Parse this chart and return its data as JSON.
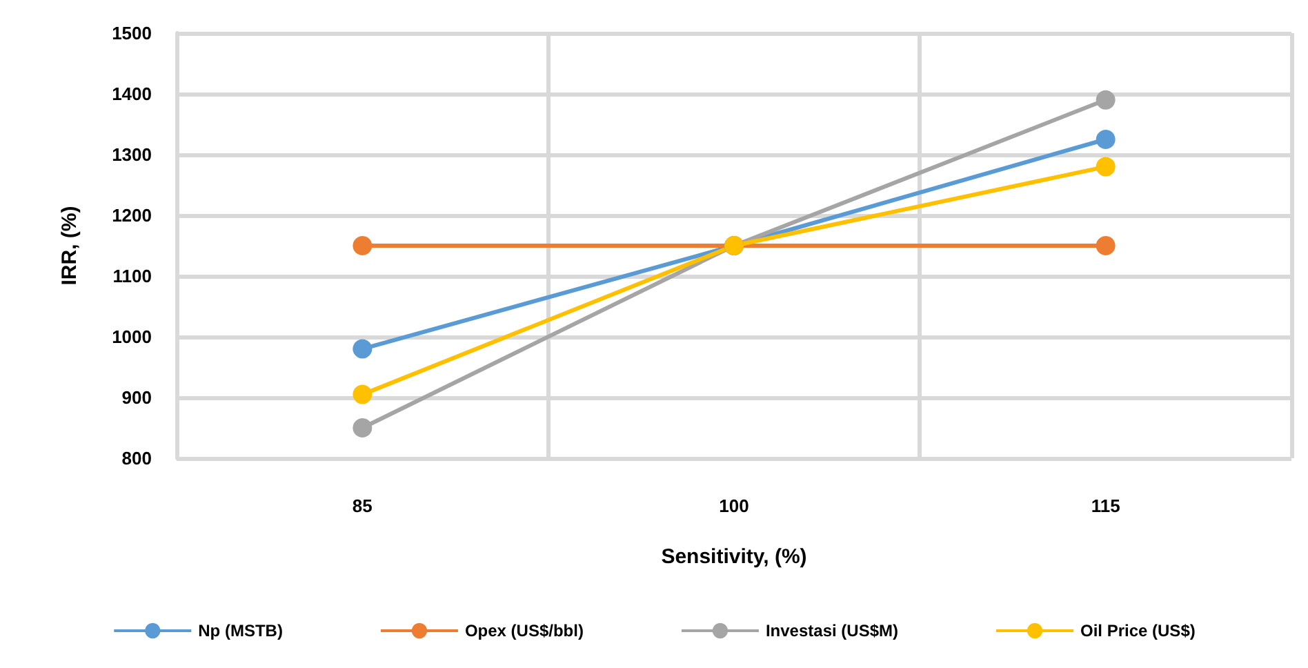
{
  "chart_data": {
    "type": "line",
    "xlabel": "Sensitivity, (%)",
    "ylabel": "IRR, (%)",
    "categories": [
      "85",
      "100",
      "115"
    ],
    "series": [
      {
        "name": "Np (MSTB)",
        "color": "#5b9bd5",
        "values": [
          980,
          1150,
          1325
        ]
      },
      {
        "name": "Opex (US$/bbl)",
        "color": "#ed7d31",
        "values": [
          1150,
          1150,
          1150
        ]
      },
      {
        "name": "Investasi (US$M)",
        "color": "#a5a5a5",
        "values": [
          850,
          1150,
          1390
        ]
      },
      {
        "name": "Oil Price (US$)",
        "color": "#ffc000",
        "values": [
          905,
          1150,
          1280
        ]
      }
    ],
    "ylim": [
      800,
      1500
    ],
    "yticks": [
      800,
      900,
      1000,
      1100,
      1200,
      1300,
      1400,
      1500
    ],
    "grid": true,
    "legend": "bottom",
    "marker": "circle",
    "line_style": "solid"
  }
}
